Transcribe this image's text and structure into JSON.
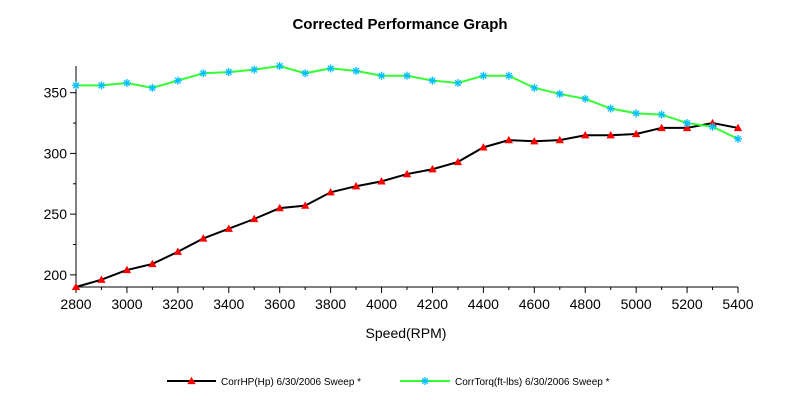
{
  "chart_data": {
    "type": "line",
    "title": "Corrected Performance Graph",
    "xlabel": "Speed(RPM)",
    "ylabel": "",
    "xlim": [
      2800,
      5400
    ],
    "ylim": [
      190,
      372
    ],
    "x_ticks": [
      2800,
      3000,
      3200,
      3400,
      3600,
      3800,
      4000,
      4200,
      4400,
      4600,
      4800,
      5000,
      5200,
      5400
    ],
    "y_ticks": [
      200,
      250,
      300,
      350
    ],
    "grid": false,
    "legend_position": "bottom",
    "x": [
      2800,
      2900,
      3000,
      3100,
      3200,
      3300,
      3400,
      3500,
      3600,
      3700,
      3800,
      3900,
      4000,
      4100,
      4200,
      4300,
      4400,
      4500,
      4600,
      4700,
      4800,
      4900,
      5000,
      5100,
      5200,
      5300,
      5400
    ],
    "series": [
      {
        "name": "CorrHP(Hp) 6/30/2006 Sweep *",
        "color": "#000000",
        "marker_color": "#ff0000",
        "marker": "triangle",
        "values": [
          190,
          196,
          204,
          209,
          219,
          230,
          238,
          246,
          255,
          257,
          268,
          273,
          277,
          283,
          287,
          293,
          305,
          311,
          310,
          311,
          315,
          315,
          316,
          321,
          321,
          325,
          321
        ]
      },
      {
        "name": "CorrTorq(ft-lbs) 6/30/2006 Sweep *",
        "color": "#33ff33",
        "marker_color": "#00bfff",
        "marker": "star",
        "values": [
          356,
          356,
          358,
          354,
          360,
          366,
          367,
          369,
          372,
          366,
          370,
          368,
          364,
          364,
          360,
          358,
          364,
          364,
          354,
          349,
          345,
          337,
          333,
          332,
          325,
          322,
          312
        ]
      }
    ]
  }
}
